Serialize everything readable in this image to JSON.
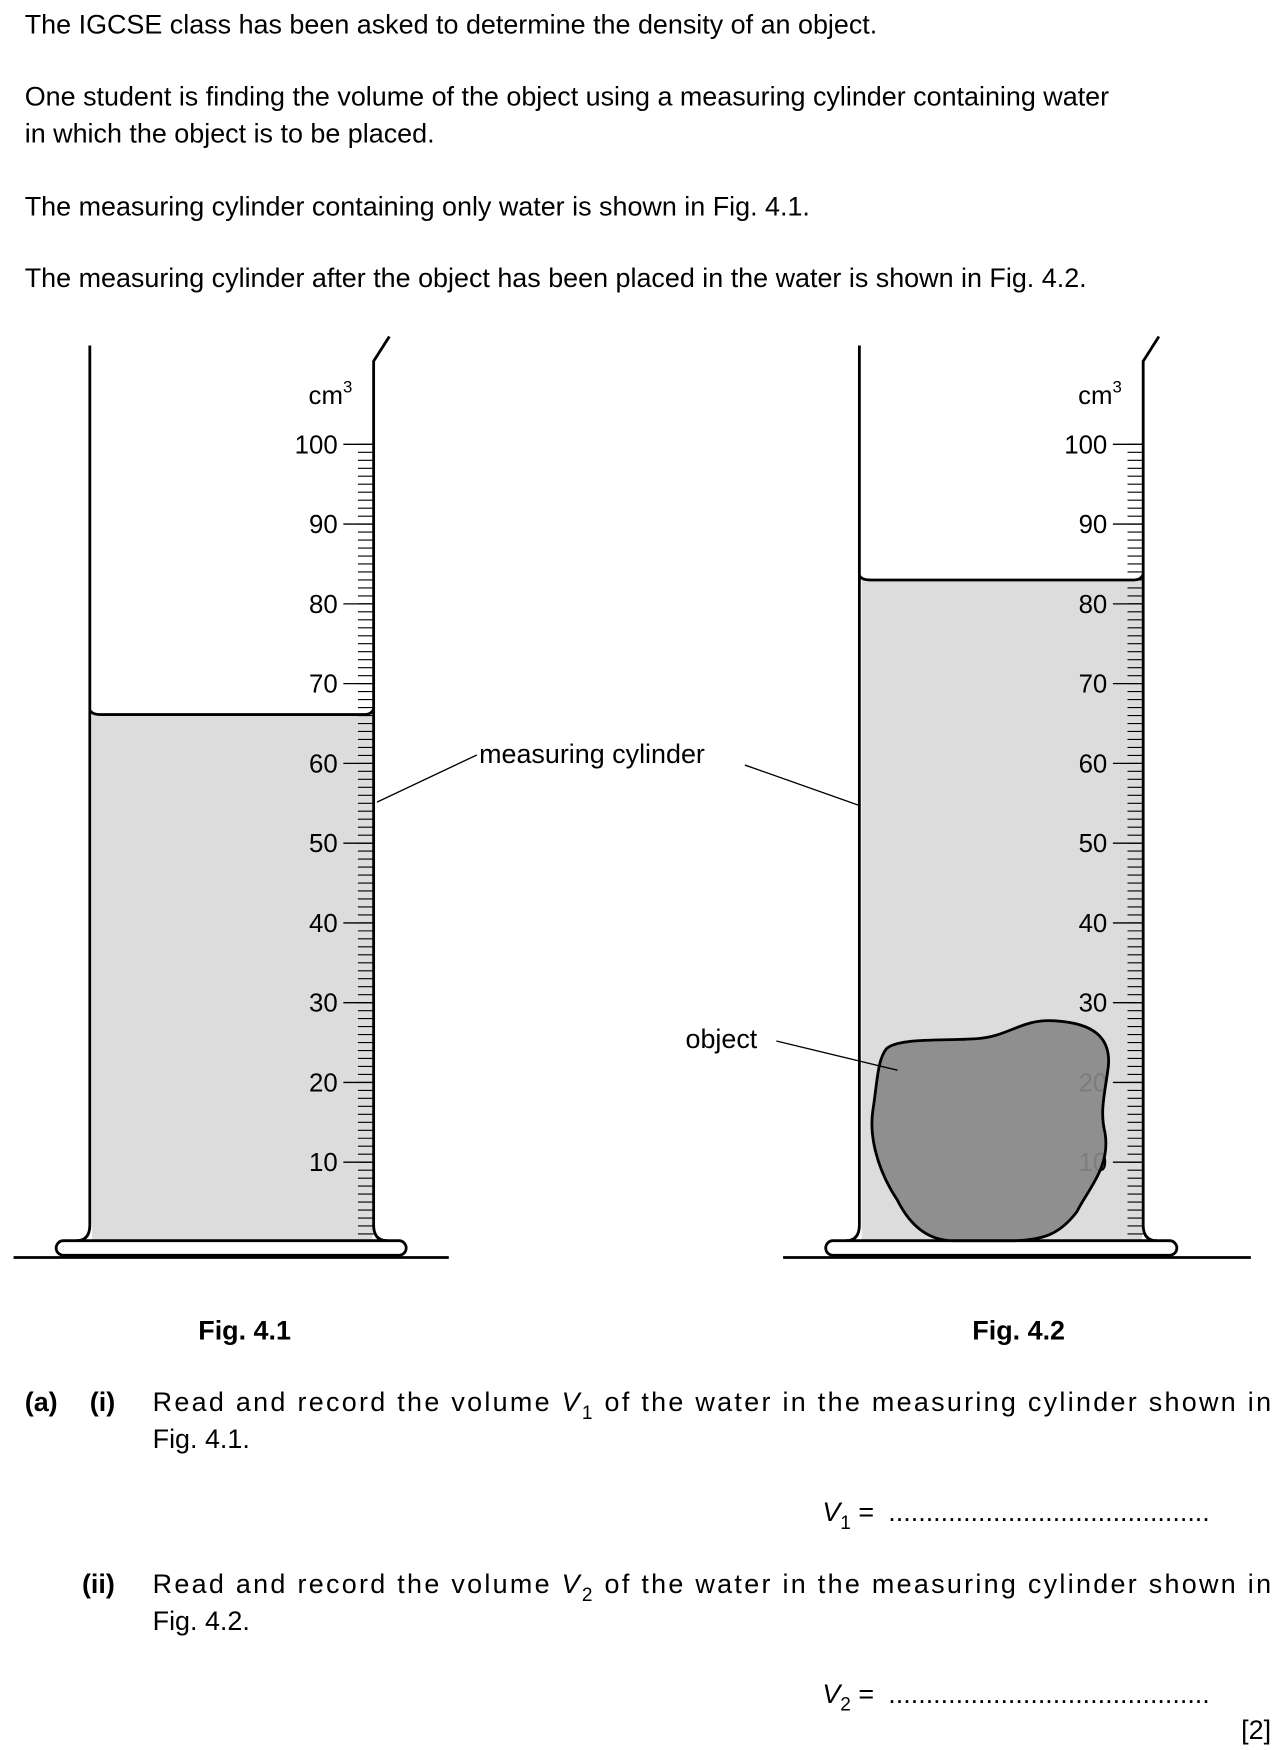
{
  "intro": [
    {
      "lines": [
        "The IGCSE class has been asked to determine the density of an object."
      ]
    },
    {
      "lines": [
        "One student is finding the volume of the object using a measuring cylinder containing water",
        "in which the object is to be placed."
      ]
    },
    {
      "lines": [
        "The measuring cylinder containing only water is shown in Fig. 4.1."
      ]
    },
    {
      "lines": [
        "The measuring cylinder after the object has been placed in the water is shown in Fig. 4.2."
      ]
    }
  ],
  "figures": [
    {
      "unit": "cm",
      "unit_power": "3",
      "scale_labels": [
        100,
        90,
        80,
        70,
        60,
        50,
        40,
        30,
        20,
        10
      ],
      "caption": "Fig. 4.1"
    },
    {
      "unit": "cm",
      "unit_power": "3",
      "scale_labels": [
        100,
        90,
        80,
        70,
        60,
        50,
        40,
        30,
        20,
        10
      ],
      "caption": "Fig. 4.2"
    }
  ],
  "annotations": {
    "cylinder": "measuring cylinder",
    "object": "object"
  },
  "question": {
    "part": "(a)",
    "subparts": [
      {
        "number": "(i)",
        "before": "Read and record the volume ",
        "symbol": "V",
        "subscript": "1",
        "after": " of the water in the measuring cylinder shown in",
        "line2": "Fig. 4.1.",
        "answer_symbol": "V",
        "answer_subscript": "1",
        "answer_equals": " = ",
        "answer_dots": "..........................................."
      },
      {
        "number": "(ii)",
        "before": "Read and record the volume ",
        "symbol": "V",
        "subscript": "2",
        "after": " of the water in the measuring cylinder shown in",
        "line2": "Fig. 4.2.",
        "answer_symbol": "V",
        "answer_subscript": "2",
        "answer_equals": " = ",
        "answer_dots": "..........................................."
      }
    ],
    "marks": "[2]"
  }
}
